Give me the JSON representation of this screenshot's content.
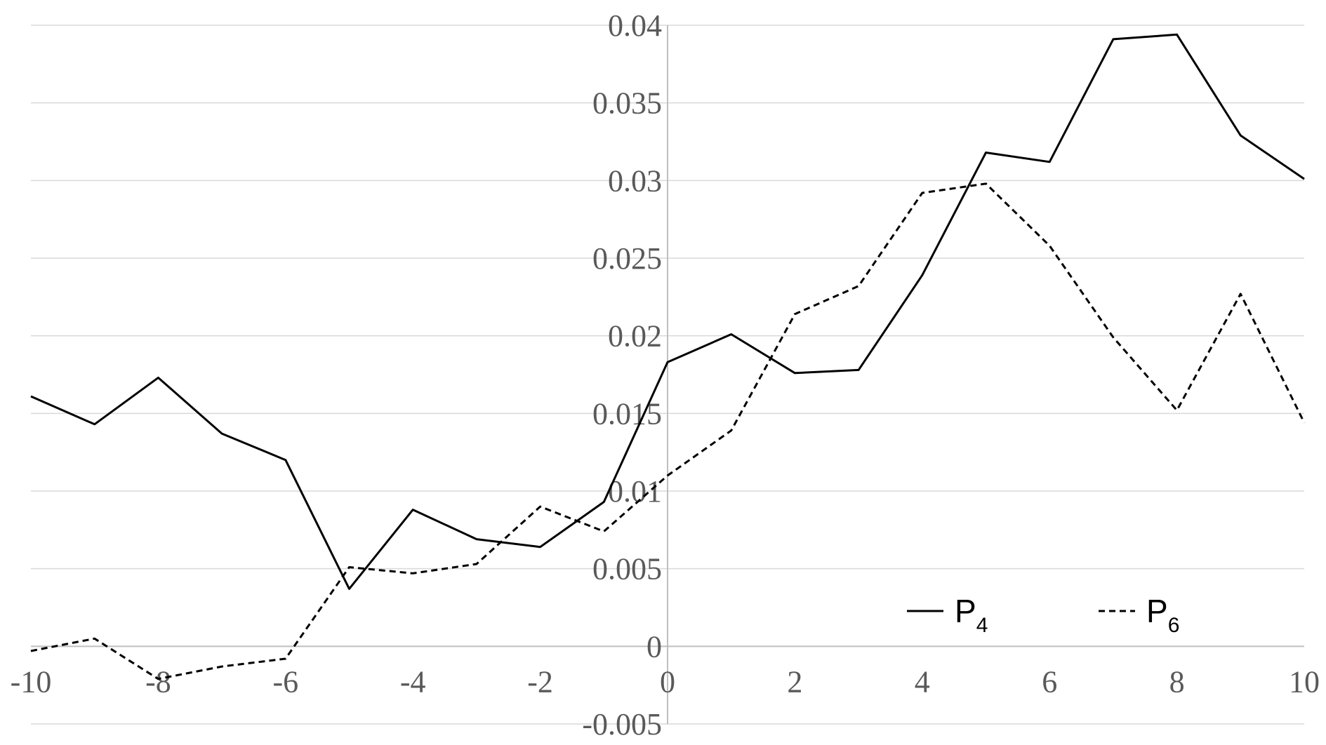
{
  "chart_data": {
    "type": "line",
    "title": "",
    "xlabel": "",
    "ylabel": "",
    "xlim": [
      -10,
      10
    ],
    "ylim": [
      -0.005,
      0.04
    ],
    "x_ticks": [
      -10,
      -8,
      -6,
      -4,
      -2,
      0,
      2,
      4,
      6,
      8,
      10
    ],
    "x_tick_labels": [
      "-10",
      "-8",
      "-6",
      "-4",
      "-2",
      "0",
      "2",
      "4",
      "6",
      "8",
      "10"
    ],
    "y_ticks": [
      -0.005,
      0,
      0.005,
      0.01,
      0.015,
      0.02,
      0.025,
      0.03,
      0.035,
      0.04
    ],
    "y_tick_labels": [
      "-0.005",
      "0",
      "0.005",
      "0.01",
      "0.015",
      "0.02",
      "0.025",
      "0.03",
      "0.035",
      "0.04"
    ],
    "grid": true,
    "legend_position": "bottom-right",
    "x": [
      -10,
      -9,
      -8,
      -7,
      -6,
      -5,
      -4,
      -3,
      -2,
      -1,
      0,
      1,
      2,
      3,
      4,
      5,
      6,
      7,
      8,
      9,
      10
    ],
    "series": [
      {
        "name_main": "P",
        "name_sub": "4",
        "style": "solid",
        "color": "#000000",
        "values": [
          0.0161,
          0.0143,
          0.0173,
          0.0137,
          0.012,
          0.0037,
          0.0088,
          0.0069,
          0.0064,
          0.0093,
          0.0183,
          0.0201,
          0.0176,
          0.0178,
          0.0239,
          0.0318,
          0.0312,
          0.0391,
          0.0394,
          0.0329,
          0.0301
        ]
      },
      {
        "name_main": "P",
        "name_sub": "6",
        "style": "dashed",
        "color": "#000000",
        "values": [
          -0.0003,
          0.0005,
          -0.0021,
          -0.0013,
          -0.0008,
          0.0051,
          0.0047,
          0.0053,
          0.009,
          0.0074,
          0.011,
          0.0139,
          0.0214,
          0.0232,
          0.0292,
          0.0298,
          0.0258,
          0.0199,
          0.0152,
          0.0227,
          0.0144
        ]
      }
    ]
  }
}
